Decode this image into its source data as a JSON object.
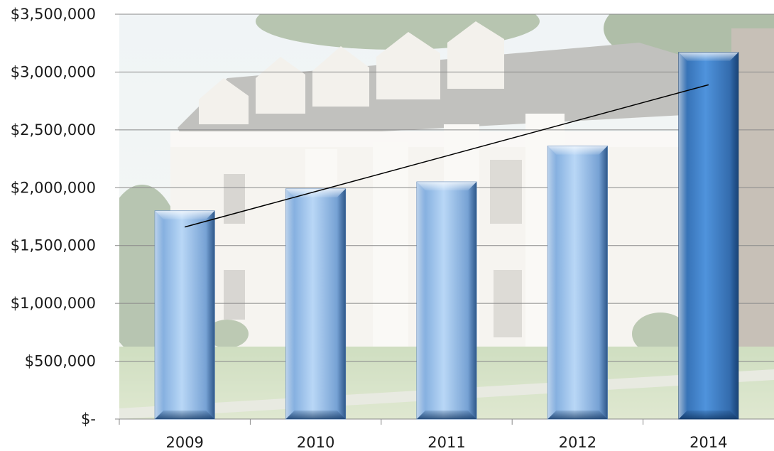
{
  "chart_data": {
    "type": "bar",
    "title": "",
    "xlabel": "",
    "ylabel": "",
    "categories": [
      "2009",
      "2010",
      "2011",
      "2012",
      "2014"
    ],
    "values": [
      1800000,
      1990000,
      2050000,
      2360000,
      3170000
    ],
    "ylim": [
      0,
      3500000
    ],
    "y_ticks": [
      0,
      500000,
      1000000,
      1500000,
      2000000,
      2500000,
      3000000,
      3500000
    ],
    "y_tick_labels": [
      "$-",
      "$500,000",
      "$1,000,000",
      "$1,500,000",
      "$2,000,000",
      "$2,500,000",
      "$3,000,000",
      "$3,500,000"
    ],
    "grid": true,
    "trendline": {
      "type": "linear",
      "start": 1660000,
      "end": 2890000
    },
    "highlight_category": "2014",
    "colors": {
      "bar_light": "#a9cdf3",
      "bar_mid": "#6ea3de",
      "bar_highlight": "#3f82cf",
      "bar_highlight_dark": "#23558f",
      "gridline": "#8a8a8a",
      "trendline": "#000000"
    },
    "background_image": "campus-building-photo"
  }
}
